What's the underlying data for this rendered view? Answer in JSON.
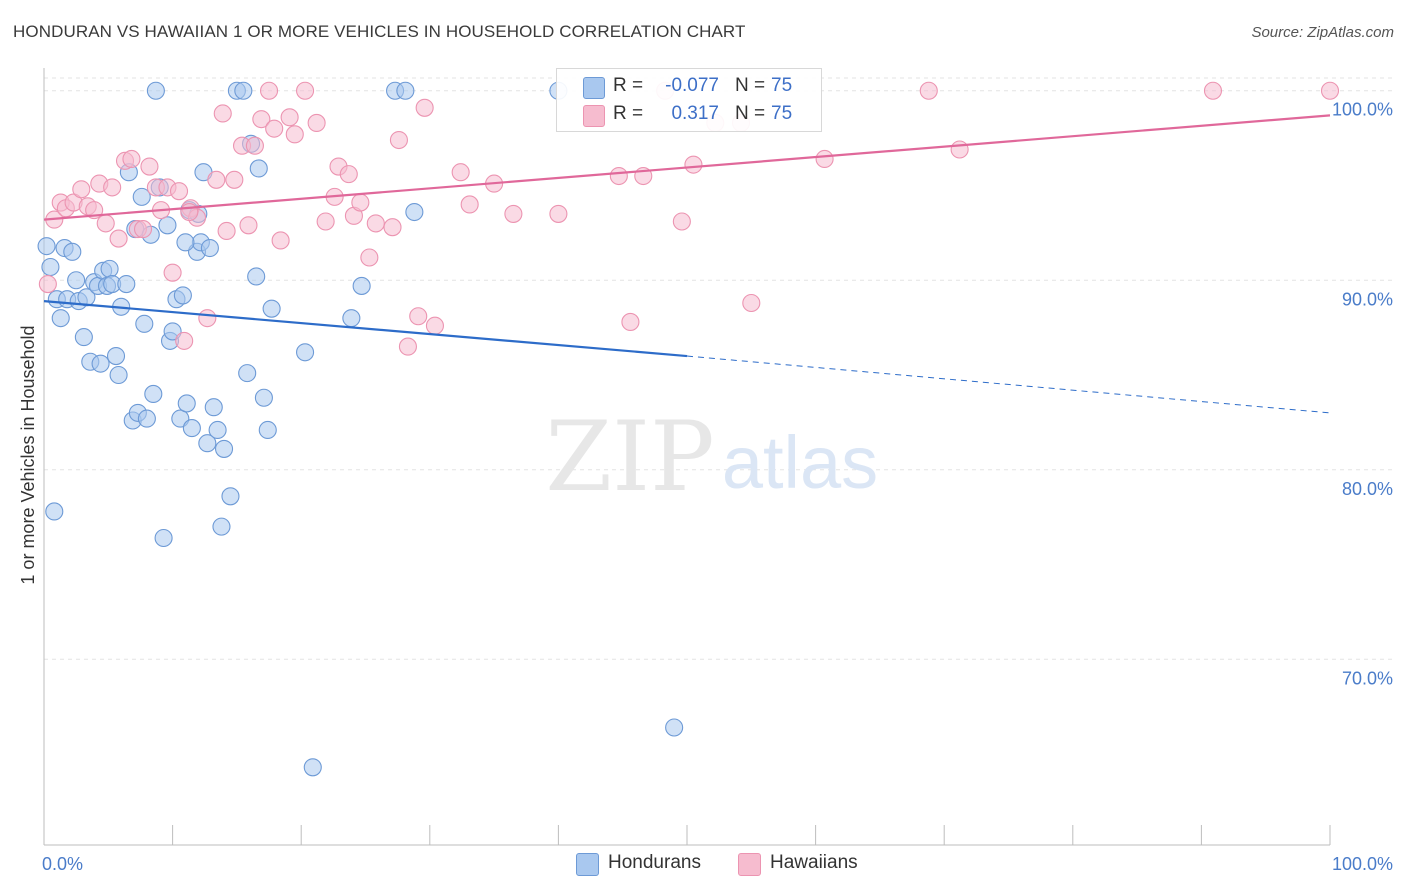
{
  "title": "HONDURAN VS HAWAIIAN 1 OR MORE VEHICLES IN HOUSEHOLD CORRELATION CHART",
  "source": "Source: ZipAtlas.com",
  "watermark": {
    "zip": "ZIP",
    "atlas": "atlas"
  },
  "colors": {
    "hondurans_fill": "#a9c8ef",
    "hondurans_stroke": "#6d9ad6",
    "hondurans_line": "#2d6cc9",
    "hawaiians_fill": "#f6bccf",
    "hawaiians_stroke": "#ec94b1",
    "hawaiians_line": "#e0689a",
    "tick_label": "#4a7cc9",
    "grid": "#e3e3e3"
  },
  "legend": {
    "rows": [
      {
        "r_label": "R =",
        "r_value": "-0.077",
        "n_label": "N =",
        "n_value": "75"
      },
      {
        "r_label": "R =",
        "r_value": "0.317",
        "n_label": "N =",
        "n_value": "75"
      }
    ]
  },
  "bottom_legend": {
    "hondurans": "Hondurans",
    "hawaiians": "Hawaiians"
  },
  "chart_data": {
    "type": "scatter",
    "title": "HONDURAN VS HAWAIIAN 1 OR MORE VEHICLES IN HOUSEHOLD CORRELATION CHART",
    "xlabel": "",
    "ylabel": "1 or more Vehicles in Household",
    "xlim": [
      0,
      100
    ],
    "ylim": [
      60.2,
      101.2
    ],
    "x_tick_labels": [
      "0.0%",
      "100.0%"
    ],
    "y_ticks": [
      70,
      80,
      90,
      100
    ],
    "y_tick_labels": [
      "70.0%",
      "80.0%",
      "90.0%",
      "100.0%"
    ],
    "grid": true,
    "legend_position": "top-center",
    "series": [
      {
        "name": "Hondurans",
        "r": -0.077,
        "n": 75,
        "trend": {
          "x0": 0,
          "y0": 88.9,
          "x1": 50,
          "y1": 86.0,
          "dashed_to_x": 100,
          "dashed_to_y": 83.0
        },
        "points": [
          [
            0.2,
            91.8
          ],
          [
            0.5,
            90.7
          ],
          [
            0.8,
            77.8
          ],
          [
            1.0,
            89.0
          ],
          [
            1.3,
            88.0
          ],
          [
            1.6,
            91.7
          ],
          [
            1.8,
            89.0
          ],
          [
            2.2,
            91.5
          ],
          [
            2.5,
            90.0
          ],
          [
            2.7,
            88.9
          ],
          [
            3.1,
            87.0
          ],
          [
            3.3,
            89.1
          ],
          [
            3.6,
            85.7
          ],
          [
            3.9,
            89.9
          ],
          [
            4.2,
            89.7
          ],
          [
            4.4,
            85.6
          ],
          [
            4.6,
            90.5
          ],
          [
            4.9,
            89.7
          ],
          [
            5.1,
            90.6
          ],
          [
            5.3,
            89.8
          ],
          [
            5.6,
            86.0
          ],
          [
            5.8,
            85.0
          ],
          [
            6.0,
            88.6
          ],
          [
            6.4,
            89.8
          ],
          [
            6.6,
            95.7
          ],
          [
            6.9,
            82.6
          ],
          [
            7.1,
            92.7
          ],
          [
            7.3,
            83.0
          ],
          [
            7.6,
            94.4
          ],
          [
            7.8,
            87.7
          ],
          [
            8.0,
            82.7
          ],
          [
            8.3,
            92.4
          ],
          [
            8.5,
            84.0
          ],
          [
            8.7,
            100.0
          ],
          [
            9.0,
            94.9
          ],
          [
            9.3,
            76.4
          ],
          [
            9.6,
            92.9
          ],
          [
            9.8,
            86.8
          ],
          [
            10.0,
            87.3
          ],
          [
            10.3,
            89.0
          ],
          [
            10.6,
            82.7
          ],
          [
            10.8,
            89.2
          ],
          [
            11.1,
            83.5
          ],
          [
            11.3,
            93.7
          ],
          [
            11.5,
            82.2
          ],
          [
            11.9,
            91.5
          ],
          [
            12.2,
            92.0
          ],
          [
            12.4,
            95.7
          ],
          [
            12.7,
            81.4
          ],
          [
            12.9,
            91.7
          ],
          [
            13.2,
            83.3
          ],
          [
            13.5,
            82.1
          ],
          [
            13.8,
            77.0
          ],
          [
            14.0,
            81.1
          ],
          [
            14.5,
            78.6
          ],
          [
            15.0,
            100.0
          ],
          [
            15.5,
            100.0
          ],
          [
            15.8,
            85.1
          ],
          [
            16.1,
            97.2
          ],
          [
            16.5,
            90.2
          ],
          [
            16.7,
            95.9
          ],
          [
            17.1,
            83.8
          ],
          [
            17.4,
            82.1
          ],
          [
            17.7,
            88.5
          ],
          [
            20.3,
            86.2
          ],
          [
            20.9,
            64.3
          ],
          [
            23.9,
            88.0
          ],
          [
            24.7,
            89.7
          ],
          [
            27.3,
            100.0
          ],
          [
            28.1,
            100.0
          ],
          [
            28.8,
            93.6
          ],
          [
            40.0,
            100.0
          ],
          [
            49.0,
            66.4
          ],
          [
            11.0,
            92.0
          ],
          [
            12.0,
            93.5
          ]
        ]
      },
      {
        "name": "Hawaiians",
        "r": 0.317,
        "n": 75,
        "trend": {
          "x0": 0,
          "y0": 93.2,
          "x1": 100,
          "y1": 98.7
        },
        "points": [
          [
            0.3,
            89.8
          ],
          [
            0.8,
            93.2
          ],
          [
            1.3,
            94.1
          ],
          [
            1.7,
            93.8
          ],
          [
            2.3,
            94.1
          ],
          [
            2.9,
            94.8
          ],
          [
            3.4,
            93.9
          ],
          [
            3.9,
            93.7
          ],
          [
            4.3,
            95.1
          ],
          [
            4.8,
            93.0
          ],
          [
            5.3,
            94.9
          ],
          [
            5.8,
            92.2
          ],
          [
            6.3,
            96.3
          ],
          [
            6.8,
            96.4
          ],
          [
            7.3,
            92.7
          ],
          [
            7.7,
            92.7
          ],
          [
            8.2,
            96.0
          ],
          [
            8.7,
            94.9
          ],
          [
            9.1,
            93.7
          ],
          [
            9.6,
            94.9
          ],
          [
            10.0,
            90.4
          ],
          [
            10.5,
            94.7
          ],
          [
            10.9,
            86.8
          ],
          [
            11.4,
            93.8
          ],
          [
            11.9,
            93.3
          ],
          [
            12.7,
            88.0
          ],
          [
            13.4,
            95.3
          ],
          [
            13.9,
            98.8
          ],
          [
            14.2,
            92.6
          ],
          [
            14.8,
            95.3
          ],
          [
            15.4,
            97.1
          ],
          [
            15.9,
            92.9
          ],
          [
            16.4,
            97.1
          ],
          [
            16.9,
            98.5
          ],
          [
            17.5,
            100.0
          ],
          [
            17.9,
            98.0
          ],
          [
            18.4,
            92.1
          ],
          [
            19.1,
            98.6
          ],
          [
            19.5,
            97.7
          ],
          [
            20.3,
            100.0
          ],
          [
            21.2,
            98.3
          ],
          [
            21.9,
            93.1
          ],
          [
            22.6,
            94.4
          ],
          [
            22.9,
            96.0
          ],
          [
            23.7,
            95.6
          ],
          [
            24.1,
            93.4
          ],
          [
            24.6,
            94.1
          ],
          [
            25.3,
            91.2
          ],
          [
            25.8,
            93.0
          ],
          [
            27.1,
            92.8
          ],
          [
            27.6,
            97.4
          ],
          [
            28.3,
            86.5
          ],
          [
            29.1,
            88.1
          ],
          [
            29.6,
            99.1
          ],
          [
            30.4,
            87.6
          ],
          [
            32.4,
            95.7
          ],
          [
            33.1,
            94.0
          ],
          [
            35.0,
            95.1
          ],
          [
            36.5,
            93.5
          ],
          [
            40.0,
            93.5
          ],
          [
            44.7,
            95.5
          ],
          [
            45.6,
            87.8
          ],
          [
            46.6,
            95.5
          ],
          [
            48.3,
            100.0
          ],
          [
            49.6,
            93.1
          ],
          [
            50.5,
            96.1
          ],
          [
            52.2,
            98.3
          ],
          [
            54.2,
            98.3
          ],
          [
            55.0,
            88.8
          ],
          [
            60.7,
            96.4
          ],
          [
            68.8,
            100.0
          ],
          [
            71.2,
            96.9
          ],
          [
            90.9,
            100.0
          ],
          [
            100.0,
            100.0
          ],
          [
            11.3,
            93.6
          ]
        ]
      }
    ]
  }
}
